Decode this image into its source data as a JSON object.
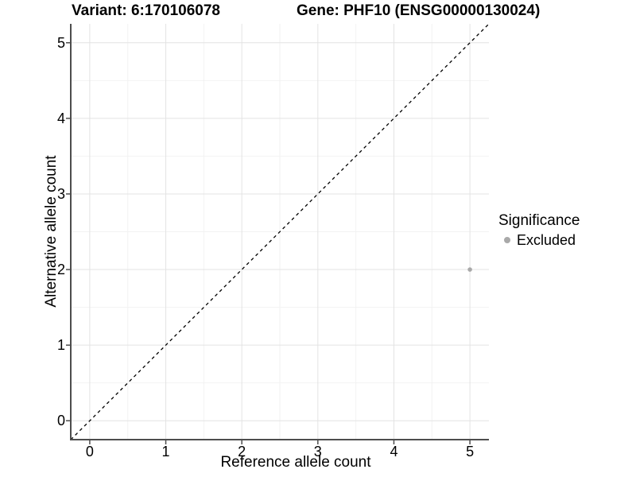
{
  "chart_data": {
    "type": "scatter",
    "title_left": "Variant: 6:170106078",
    "title_right": "Gene: PHF10 (ENSG00000130024)",
    "xlabel": "Reference allele count",
    "ylabel": "Alternative allele count",
    "xlim": [
      -0.25,
      5.25
    ],
    "ylim": [
      -0.25,
      5.25
    ],
    "x_ticks": [
      0,
      1,
      2,
      3,
      4,
      5
    ],
    "y_ticks": [
      0,
      1,
      2,
      3,
      4,
      5
    ],
    "x_tick_labels": [
      "0",
      "1",
      "2",
      "3",
      "4",
      "5"
    ],
    "y_tick_labels": [
      "0",
      "1",
      "2",
      "3",
      "4",
      "5"
    ],
    "grid": {
      "major": true,
      "minor": true
    },
    "reference_line": {
      "type": "identity",
      "from": [
        -0.25,
        -0.25
      ],
      "to": [
        5.25,
        5.25
      ],
      "style": "dashed",
      "color": "#000000"
    },
    "series": [
      {
        "name": "Excluded",
        "color": "#a9a9a9",
        "points": [
          {
            "x": 5,
            "y": 2
          }
        ]
      }
    ],
    "legend": {
      "title": "Significance",
      "position": "right",
      "entries": [
        {
          "label": "Excluded",
          "color": "#a9a9a9"
        }
      ]
    },
    "colors": {
      "background": "#ffffff",
      "grid_major": "#e3e3e3",
      "grid_minor": "#f2f2f2",
      "axis": "#4d4d4d",
      "text": "#000000"
    }
  }
}
